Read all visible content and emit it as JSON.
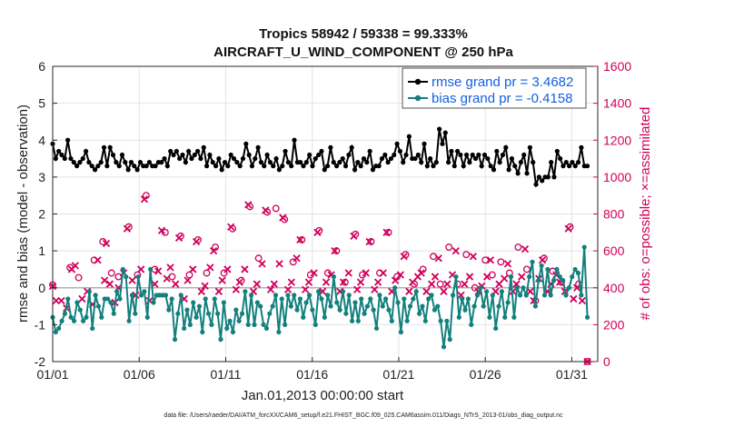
{
  "chart_data": {
    "type": "line",
    "title": "Tropics 58942 / 59338 = 99.333%",
    "subtitle": "AIRCRAFT_U_WIND_COMPONENT @ 250 hPa",
    "xlabel": "Jan.01,2013 00:00:00 start",
    "ylabel": "rmse and bias (model - observation)",
    "ylabel_right": "# of obs: o=possible; ×=assimilated",
    "footnote": "data file: /Users/raeder/DAI/ATM_forcXX/CAM6_setup/f.e21.FHIST_BGC.f09_025.CAM6assim.011/Diags_NTrS_2013-01/obs_diag_output.nc",
    "xlim": [
      1,
      32.5
    ],
    "ylim": [
      -2,
      6
    ],
    "ylim_right": [
      0,
      1600
    ],
    "x_tick_values": [
      1,
      6,
      11,
      16,
      21,
      26,
      31
    ],
    "x_tick_labels": [
      "01/01",
      "01/06",
      "01/11",
      "01/16",
      "01/21",
      "01/26",
      "01/31"
    ],
    "y_ticks": [
      "-2",
      "-1",
      "0",
      "1",
      "2",
      "3",
      "4",
      "5",
      "6"
    ],
    "y_right_ticks": [
      "0",
      "200",
      "400",
      "600",
      "800",
      "1000",
      "1200",
      "1400",
      "1600"
    ],
    "legend_position": "top-right",
    "series": [
      {
        "name": "rmse grand pr = 3.4682",
        "color": "#000000",
        "axis": "left",
        "values": [
          3.9,
          3.5,
          3.7,
          3.6,
          3.5,
          4.0,
          3.5,
          3.4,
          3.3,
          3.4,
          3.5,
          3.7,
          3.4,
          3.3,
          3.2,
          3.3,
          3.4,
          3.8,
          3.3,
          3.8,
          3.6,
          3.4,
          3.3,
          3.6,
          3.4,
          3.2,
          3.4,
          3.3,
          3.2,
          3.4,
          3.3,
          3.3,
          3.4,
          3.3,
          3.3,
          3.4,
          3.4,
          3.5,
          3.3,
          3.7,
          3.6,
          3.7,
          3.5,
          3.6,
          3.4,
          3.7,
          3.5,
          3.6,
          3.7,
          3.5,
          3.8,
          3.3,
          3.6,
          3.4,
          3.3,
          3.5,
          3.2,
          3.4,
          3.3,
          3.6,
          3.5,
          3.4,
          3.3,
          3.5,
          3.9,
          3.6,
          3.3,
          3.5,
          3.8,
          3.4,
          3.3,
          3.6,
          3.4,
          3.3,
          3.5,
          3.2,
          3.3,
          3.7,
          3.4,
          3.3,
          4.0,
          3.4,
          3.4,
          3.3,
          3.4,
          3.6,
          3.3,
          3.5,
          3.6,
          3.7,
          3.2,
          3.3,
          3.8,
          3.4,
          3.3,
          3.4,
          3.5,
          3.3,
          3.6,
          3.8,
          3.2,
          3.4,
          3.3,
          3.5,
          3.4,
          3.7,
          3.2,
          3.3,
          3.3,
          3.5,
          3.6,
          3.4,
          3.5,
          3.6,
          3.9,
          3.7,
          3.4,
          3.6,
          4.1,
          3.5,
          3.5,
          3.6,
          3.4,
          3.9,
          3.3,
          3.5,
          3.3,
          3.4,
          4.3,
          3.9,
          4.2,
          3.4,
          3.7,
          3.3,
          3.7,
          3.6,
          3.3,
          3.6,
          3.4,
          3.6,
          3.5,
          3.6,
          3.3,
          3.6,
          3.5,
          3.3,
          3.2,
          3.7,
          3.4,
          3.6,
          3.8,
          3.2,
          3.5,
          3.3,
          3.1,
          3.4,
          3.6,
          3.1,
          3.8,
          3.4,
          2.8,
          3.0,
          2.9,
          3.0,
          3.0,
          3.4,
          3.0,
          3.7,
          3.5,
          3.3,
          3.4,
          3.3,
          3.4,
          3.3,
          3.4,
          3.8,
          3.3,
          3.3
        ]
      },
      {
        "name": "bias grand pr = -0.4158",
        "color": "#13807e",
        "axis": "left",
        "values": [
          -0.8,
          -1.2,
          -1.1,
          -0.9,
          -0.7,
          -0.3,
          -0.8,
          -0.9,
          -0.4,
          -0.6,
          -0.9,
          -0.8,
          -0.1,
          -1.1,
          -0.2,
          -0.5,
          -0.8,
          -0.3,
          -0.3,
          -0.4,
          -0.7,
          -0.1,
          -0.3,
          0.5,
          0.3,
          -0.9,
          -0.2,
          -0.7,
          0.3,
          -0.2,
          -0.1,
          -0.8,
          0.5,
          -0.4,
          -0.2,
          -0.2,
          -0.2,
          -0.2,
          -0.6,
          -0.3,
          -1.4,
          -0.7,
          -0.2,
          -1.1,
          -0.6,
          -1.0,
          -0.4,
          -0.8,
          -0.5,
          -1.2,
          -0.3,
          -0.7,
          -1.0,
          -0.3,
          -0.7,
          -1.4,
          -0.4,
          -1.1,
          -0.9,
          -1.2,
          -0.6,
          -0.9,
          -0.7,
          -0.1,
          -1.0,
          -0.2,
          -1.0,
          -0.4,
          -0.5,
          -1.0,
          -1.1,
          -0.7,
          -0.5,
          -0.2,
          -1.2,
          -0.3,
          -1.0,
          -0.2,
          -0.5,
          -0.2,
          -0.6,
          -0.3,
          -0.8,
          -0.4,
          -0.2,
          -0.6,
          -1.0,
          -0.1,
          -0.3,
          -0.8,
          -0.2,
          -0.5,
          0.3,
          -0.4,
          -0.6,
          -0.1,
          -0.7,
          -0.2,
          -0.9,
          -0.4,
          -0.9,
          -0.3,
          -0.7,
          -0.5,
          -0.3,
          -0.6,
          -1.1,
          -0.2,
          -0.5,
          -0.3,
          -0.6,
          -0.9,
          0.0,
          -0.4,
          -1.2,
          -0.3,
          -0.9,
          -0.5,
          -0.3,
          -0.1,
          -0.7,
          -0.5,
          -0.9,
          -0.3,
          -0.2,
          -0.6,
          -0.5,
          -0.9,
          -1.6,
          -0.9,
          -1.4,
          -0.2,
          0.3,
          -0.8,
          -0.3,
          -0.6,
          -0.3,
          -1.0,
          -0.5,
          -0.2,
          0.0,
          -0.5,
          -0.1,
          -0.8,
          -0.2,
          -1.1,
          -0.5,
          -0.1,
          -0.8,
          -0.4,
          0.3,
          -0.8,
          0.0,
          -0.2,
          0.0,
          -0.2,
          0.3,
          0.7,
          -0.5,
          0.2,
          0.6,
          -0.2,
          0.5,
          -0.2,
          0.2,
          0.5,
          0.3,
          0.2,
          -0.2,
          0.0,
          0.3,
          0.5,
          0.4,
          -0.2,
          1.1,
          -0.8
        ]
      }
    ],
    "obs_possible": [
      [
        1.0,
        415
      ],
      [
        2.0,
        510
      ],
      [
        2.5,
        455
      ],
      [
        3.4,
        550
      ],
      [
        3.9,
        650
      ],
      [
        4.4,
        480
      ],
      [
        4.8,
        460
      ],
      [
        5.4,
        730
      ],
      [
        5.9,
        470
      ],
      [
        6.4,
        900
      ],
      [
        6.9,
        500
      ],
      [
        7.5,
        700
      ],
      [
        7.9,
        460
      ],
      [
        8.4,
        680
      ],
      [
        8.9,
        470
      ],
      [
        9.4,
        660
      ],
      [
        9.9,
        480
      ],
      [
        10.4,
        620
      ],
      [
        10.9,
        480
      ],
      [
        11.4,
        720
      ],
      [
        11.9,
        440
      ],
      [
        12.4,
        840
      ],
      [
        12.9,
        560
      ],
      [
        13.4,
        810
      ],
      [
        13.9,
        830
      ],
      [
        14.4,
        770
      ],
      [
        14.9,
        540
      ],
      [
        15.4,
        660
      ],
      [
        15.9,
        470
      ],
      [
        16.4,
        710
      ],
      [
        16.9,
        480
      ],
      [
        17.4,
        600
      ],
      [
        17.9,
        430
      ],
      [
        18.5,
        690
      ],
      [
        18.9,
        470
      ],
      [
        19.4,
        650
      ],
      [
        19.9,
        480
      ],
      [
        20.4,
        700
      ],
      [
        20.9,
        460
      ],
      [
        21.4,
        580
      ],
      [
        21.9,
        420
      ],
      [
        22.4,
        500
      ],
      [
        23.0,
        570
      ],
      [
        23.4,
        420
      ],
      [
        23.9,
        620
      ],
      [
        24.4,
        420
      ],
      [
        24.9,
        580
      ],
      [
        25.4,
        400
      ],
      [
        26.0,
        550
      ],
      [
        26.4,
        470
      ],
      [
        26.9,
        540
      ],
      [
        27.4,
        480
      ],
      [
        27.9,
        620
      ],
      [
        28.4,
        500
      ],
      [
        28.9,
        330
      ],
      [
        29.4,
        560
      ],
      [
        29.9,
        490
      ],
      [
        30.4,
        430
      ],
      [
        30.9,
        730
      ],
      [
        31.4,
        420
      ],
      [
        31.9,
        0
      ]
    ],
    "obs_assimilated": [
      [
        1.0,
        408
      ],
      [
        1.2,
        330
      ],
      [
        1.5,
        330
      ],
      [
        1.8,
        290
      ],
      [
        2.1,
        500
      ],
      [
        2.3,
        520
      ],
      [
        2.7,
        340
      ],
      [
        3.0,
        380
      ],
      [
        3.3,
        310
      ],
      [
        3.6,
        550
      ],
      [
        4.0,
        440
      ],
      [
        4.1,
        640
      ],
      [
        4.3,
        420
      ],
      [
        4.6,
        320
      ],
      [
        4.8,
        400
      ],
      [
        5.1,
        480
      ],
      [
        5.3,
        720
      ],
      [
        5.6,
        440
      ],
      [
        5.8,
        360
      ],
      [
        6.1,
        500
      ],
      [
        6.3,
        880
      ],
      [
        6.6,
        330
      ],
      [
        6.9,
        420
      ],
      [
        7.1,
        490
      ],
      [
        7.3,
        710
      ],
      [
        7.6,
        450
      ],
      [
        7.8,
        510
      ],
      [
        8.1,
        420
      ],
      [
        8.3,
        670
      ],
      [
        8.6,
        340
      ],
      [
        8.8,
        440
      ],
      [
        9.1,
        500
      ],
      [
        9.3,
        650
      ],
      [
        9.6,
        380
      ],
      [
        9.8,
        410
      ],
      [
        10.1,
        510
      ],
      [
        10.3,
        600
      ],
      [
        10.6,
        380
      ],
      [
        10.8,
        440
      ],
      [
        11.1,
        500
      ],
      [
        11.3,
        730
      ],
      [
        11.6,
        390
      ],
      [
        11.8,
        430
      ],
      [
        12.1,
        500
      ],
      [
        12.3,
        850
      ],
      [
        12.6,
        380
      ],
      [
        12.8,
        420
      ],
      [
        13.1,
        530
      ],
      [
        13.3,
        820
      ],
      [
        13.6,
        390
      ],
      [
        13.8,
        420
      ],
      [
        14.1,
        530
      ],
      [
        14.3,
        780
      ],
      [
        14.6,
        390
      ],
      [
        14.8,
        430
      ],
      [
        15.1,
        560
      ],
      [
        15.3,
        660
      ],
      [
        15.6,
        390
      ],
      [
        15.8,
        430
      ],
      [
        16.1,
        480
      ],
      [
        16.3,
        700
      ],
      [
        16.6,
        380
      ],
      [
        16.8,
        430
      ],
      [
        17.1,
        470
      ],
      [
        17.3,
        600
      ],
      [
        17.6,
        380
      ],
      [
        17.8,
        430
      ],
      [
        18.1,
        480
      ],
      [
        18.4,
        680
      ],
      [
        18.6,
        390
      ],
      [
        18.8,
        430
      ],
      [
        19.1,
        480
      ],
      [
        19.3,
        650
      ],
      [
        19.6,
        390
      ],
      [
        19.8,
        430
      ],
      [
        20.1,
        480
      ],
      [
        20.3,
        700
      ],
      [
        20.6,
        380
      ],
      [
        20.8,
        440
      ],
      [
        21.1,
        470
      ],
      [
        21.3,
        570
      ],
      [
        21.6,
        380
      ],
      [
        21.8,
        430
      ],
      [
        22.1,
        460
      ],
      [
        22.3,
        480
      ],
      [
        22.6,
        380
      ],
      [
        22.9,
        420
      ],
      [
        23.1,
        460
      ],
      [
        23.3,
        560
      ],
      [
        23.6,
        380
      ],
      [
        23.8,
        420
      ],
      [
        24.1,
        470
      ],
      [
        24.3,
        600
      ],
      [
        24.6,
        360
      ],
      [
        24.8,
        420
      ],
      [
        25.1,
        460
      ],
      [
        25.3,
        570
      ],
      [
        25.6,
        380
      ],
      [
        25.8,
        410
      ],
      [
        26.1,
        460
      ],
      [
        26.3,
        550
      ],
      [
        26.6,
        380
      ],
      [
        26.8,
        420
      ],
      [
        27.1,
        450
      ],
      [
        27.3,
        530
      ],
      [
        27.6,
        380
      ],
      [
        27.8,
        420
      ],
      [
        28.1,
        460
      ],
      [
        28.3,
        610
      ],
      [
        28.6,
        380
      ],
      [
        28.8,
        330
      ],
      [
        29.1,
        450
      ],
      [
        29.3,
        550
      ],
      [
        29.6,
        380
      ],
      [
        29.8,
        420
      ],
      [
        30.1,
        470
      ],
      [
        30.3,
        430
      ],
      [
        30.6,
        380
      ],
      [
        30.8,
        720
      ],
      [
        31.1,
        340
      ],
      [
        31.3,
        400
      ],
      [
        31.6,
        330
      ],
      [
        31.9,
        0
      ]
    ]
  }
}
